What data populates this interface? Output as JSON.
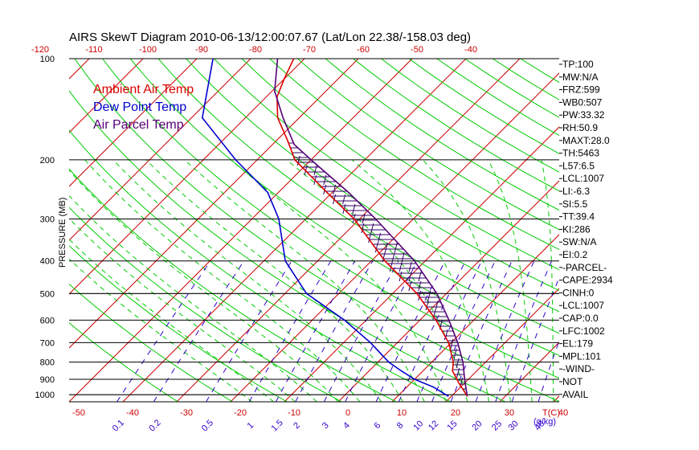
{
  "chart_data": {
    "type": "line",
    "title": "AIRS SkewT Diagram 2010-06-13/12:00:07.67 (Lat/Lon 22.38/-158.03 deg)",
    "ylabel": "PRESSURE (MB)",
    "xlabel": "T(C)",
    "mixing_ratio_unit_label": "(g/kg)",
    "yscale": "log",
    "ylim": [
      1050,
      100
    ],
    "pressure_ticks": [
      "100",
      "200",
      "300",
      "400",
      "500",
      "600",
      "700",
      "800",
      "900",
      "1000"
    ],
    "top_temp_ticks": [
      "-120",
      "-110",
      "-100",
      "-90",
      "-80",
      "-70",
      "-60",
      "-50",
      "-40"
    ],
    "bottom_temp_ticks": [
      "-50",
      "-40",
      "-30",
      "-20",
      "-10",
      "0",
      "10",
      "20",
      "30",
      "40"
    ],
    "mixing_ratio_ticks": [
      "0.1",
      "0.2",
      "0.5",
      "1",
      "1.5",
      "2",
      "3",
      "4",
      "6",
      "8",
      "10",
      "12",
      "15",
      "20",
      "25",
      "30",
      "40"
    ],
    "legend": [
      "Ambient Air Temp",
      "Dew Point Temp",
      "Air Parcel Temp"
    ],
    "colors": {
      "ambient": "#dd0000",
      "dewpoint": "#0000cc",
      "parcel": "#550077",
      "isotherm": "#cc0000",
      "dry_adiabat": "#00cc00",
      "moist_adiabat": "#00cc00",
      "mixing_ratio": "#3300cc",
      "cape_hatch": "#330066",
      "isobar": "#000000"
    },
    "series": [
      {
        "name": "Ambient Air Temp",
        "points": [
          [
            1012,
            23.0
          ],
          [
            925,
            19.0
          ],
          [
            850,
            15.5
          ],
          [
            800,
            14.0
          ],
          [
            700,
            9.5
          ],
          [
            600,
            3.0
          ],
          [
            500,
            -5.5
          ],
          [
            400,
            -17.5
          ],
          [
            300,
            -31.0
          ],
          [
            250,
            -41.0
          ],
          [
            200,
            -53.0
          ],
          [
            175,
            -58.0
          ],
          [
            150,
            -64.0
          ],
          [
            130,
            -68.0
          ],
          [
            115,
            -70.0
          ],
          [
            100,
            -72.0
          ]
        ]
      },
      {
        "name": "Dew Point Temp",
        "points": [
          [
            1012,
            19.5
          ],
          [
            950,
            15.0
          ],
          [
            900,
            10.0
          ],
          [
            850,
            6.0
          ],
          [
            800,
            2.0
          ],
          [
            700,
            -5.0
          ],
          [
            600,
            -14.0
          ],
          [
            500,
            -26.0
          ],
          [
            400,
            -36.0
          ],
          [
            300,
            -45.0
          ],
          [
            250,
            -52.0
          ],
          [
            200,
            -64.0
          ],
          [
            150,
            -78.0
          ],
          [
            100,
            -87.0
          ]
        ]
      },
      {
        "name": "Air Parcel Temp",
        "points": [
          [
            1007,
            22.8
          ],
          [
            900,
            19.3
          ],
          [
            800,
            15.8
          ],
          [
            700,
            11.2
          ],
          [
            600,
            5.4
          ],
          [
            500,
            -1.8
          ],
          [
            400,
            -12.0
          ],
          [
            300,
            -27.0
          ],
          [
            250,
            -37.0
          ],
          [
            200,
            -50.0
          ],
          [
            180,
            -56.0
          ],
          [
            150,
            -63.0
          ],
          [
            125,
            -69.5
          ],
          [
            100,
            -75.0
          ]
        ]
      }
    ],
    "indices": [
      "TP:100",
      "MW:N/A",
      "FRZ:599",
      "WB0:507",
      "PW:33.32",
      "RH:50.9",
      "MAXT:28.0",
      "TH:5463",
      "L57:6.5",
      "LCL:1007",
      "LI:-6.3",
      "SI:5.5",
      "TT:39.4",
      "KI:286",
      "SW:N/A",
      "EI:0.2",
      "-PARCEL-",
      "CAPE:2934",
      "CINH:0",
      "LCL:1007",
      "CAP:0.0",
      "LFC:1002",
      "EL:179",
      "MPL:101",
      "-WIND-",
      "NOT",
      "AVAIL"
    ]
  }
}
